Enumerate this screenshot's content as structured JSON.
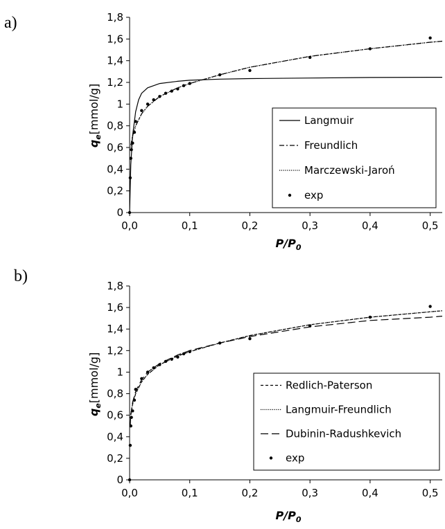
{
  "chart_data": [
    {
      "panel_label": "a)",
      "type": "line",
      "ylabel_symbol": "q",
      "ylabel_subscript": "e",
      "ylabel_unit": "[mmol/g]",
      "xlabel_main": "P/P",
      "xlabel_subscript": "0",
      "xlim": [
        0,
        0.52
      ],
      "ylim": [
        0,
        1.8
      ],
      "x_ticks": [
        "0,0",
        "0,1",
        "0,2",
        "0,3",
        "0,4",
        "0,5"
      ],
      "y_ticks": [
        "0",
        "0,2",
        "0,4",
        "0,6",
        "0,8",
        "1",
        "1,2",
        "1,4",
        "1,6",
        "1,8"
      ],
      "grid": false,
      "legend_position": "right",
      "series": [
        {
          "name": "Langmuir",
          "style": "solid",
          "kind": "line",
          "x": [
            0,
            0.002,
            0.005,
            0.01,
            0.015,
            0.02,
            0.03,
            0.05,
            0.08,
            0.1,
            0.15,
            0.2,
            0.3,
            0.4,
            0.5,
            0.52
          ],
          "y": [
            0,
            0.44,
            0.71,
            0.93,
            1.04,
            1.1,
            1.15,
            1.19,
            1.21,
            1.22,
            1.23,
            1.235,
            1.24,
            1.245,
            1.247,
            1.247
          ]
        },
        {
          "name": "Freundlich",
          "style": "dashdot",
          "kind": "line",
          "x": [
            0.002,
            0.005,
            0.01,
            0.02,
            0.03,
            0.05,
            0.08,
            0.1,
            0.15,
            0.2,
            0.3,
            0.4,
            0.5,
            0.52
          ],
          "y": [
            0.62,
            0.71,
            0.8,
            0.91,
            0.98,
            1.07,
            1.15,
            1.19,
            1.27,
            1.34,
            1.44,
            1.51,
            1.57,
            1.58
          ]
        },
        {
          "name": "Marczewski-Jaroń",
          "style": "dotted",
          "kind": "line",
          "x": [
            0.002,
            0.005,
            0.01,
            0.02,
            0.03,
            0.05,
            0.08,
            0.1,
            0.15,
            0.2,
            0.3,
            0.4,
            0.5,
            0.52
          ],
          "y": [
            0.6,
            0.7,
            0.8,
            0.91,
            0.98,
            1.07,
            1.15,
            1.19,
            1.27,
            1.34,
            1.44,
            1.51,
            1.57,
            1.58
          ]
        },
        {
          "name": "exp",
          "style": "marker",
          "kind": "scatter",
          "x": [
            0,
            0.001,
            0.002,
            0.003,
            0.005,
            0.008,
            0.01,
            0.02,
            0.03,
            0.04,
            0.05,
            0.06,
            0.07,
            0.08,
            0.09,
            0.1,
            0.15,
            0.2,
            0.3,
            0.4,
            0.5
          ],
          "y": [
            0,
            0.32,
            0.5,
            0.58,
            0.64,
            0.74,
            0.84,
            0.94,
            1.0,
            1.04,
            1.07,
            1.1,
            1.12,
            1.14,
            1.17,
            1.19,
            1.27,
            1.31,
            1.43,
            1.51,
            1.61
          ]
        }
      ]
    },
    {
      "panel_label": "b)",
      "type": "line",
      "ylabel_symbol": "q",
      "ylabel_subscript": "e",
      "ylabel_unit": "[mmol/g]",
      "xlabel_main": "P/P",
      "xlabel_subscript": "0",
      "xlim": [
        0,
        0.52
      ],
      "ylim": [
        0,
        1.8
      ],
      "x_ticks": [
        "0,0",
        "0,1",
        "0,2",
        "0,3",
        "0,4",
        "0,5"
      ],
      "y_ticks": [
        "0",
        "0,2",
        "0,4",
        "0,6",
        "0,8",
        "1",
        "1,2",
        "1,4",
        "1,6",
        "1,8"
      ],
      "grid": false,
      "legend_position": "right",
      "series": [
        {
          "name": "Redlich-Paterson",
          "style": "dashed",
          "kind": "line",
          "x": [
            0.002,
            0.005,
            0.01,
            0.02,
            0.03,
            0.05,
            0.08,
            0.1,
            0.15,
            0.2,
            0.3,
            0.4,
            0.5,
            0.52
          ],
          "y": [
            0.6,
            0.7,
            0.8,
            0.91,
            0.98,
            1.07,
            1.15,
            1.19,
            1.27,
            1.34,
            1.44,
            1.51,
            1.56,
            1.57
          ]
        },
        {
          "name": "Langmuir-Freundlich",
          "style": "dotted",
          "kind": "line",
          "x": [
            0.002,
            0.005,
            0.01,
            0.02,
            0.03,
            0.05,
            0.08,
            0.1,
            0.15,
            0.2,
            0.3,
            0.4,
            0.5,
            0.52
          ],
          "y": [
            0.61,
            0.71,
            0.8,
            0.91,
            0.98,
            1.07,
            1.15,
            1.19,
            1.27,
            1.34,
            1.44,
            1.51,
            1.56,
            1.57
          ]
        },
        {
          "name": "Dubinin-Radushkevich",
          "style": "longdash",
          "kind": "line",
          "x": [
            0.001,
            0.002,
            0.005,
            0.01,
            0.02,
            0.03,
            0.05,
            0.08,
            0.1,
            0.15,
            0.2,
            0.3,
            0.4,
            0.5,
            0.52
          ],
          "y": [
            0.5,
            0.6,
            0.72,
            0.82,
            0.93,
            1.0,
            1.08,
            1.16,
            1.2,
            1.27,
            1.33,
            1.42,
            1.48,
            1.51,
            1.52
          ]
        },
        {
          "name": "exp",
          "style": "marker",
          "kind": "scatter",
          "x": [
            0,
            0.001,
            0.002,
            0.003,
            0.005,
            0.008,
            0.01,
            0.02,
            0.03,
            0.04,
            0.05,
            0.06,
            0.07,
            0.08,
            0.09,
            0.1,
            0.15,
            0.2,
            0.3,
            0.4,
            0.5
          ],
          "y": [
            0,
            0.32,
            0.5,
            0.58,
            0.64,
            0.74,
            0.84,
            0.94,
            1.0,
            1.04,
            1.07,
            1.1,
            1.12,
            1.14,
            1.17,
            1.19,
            1.27,
            1.31,
            1.43,
            1.51,
            1.61
          ]
        }
      ]
    }
  ],
  "colors": {
    "axis": "#000000",
    "series": "#000000"
  }
}
